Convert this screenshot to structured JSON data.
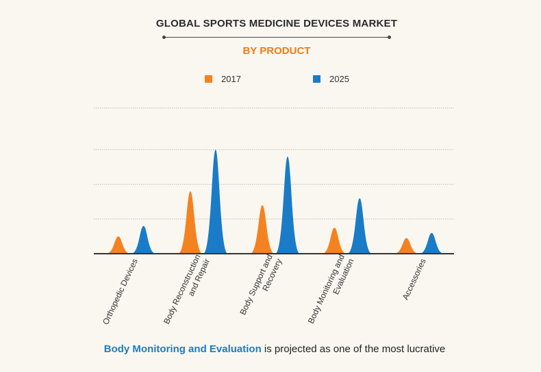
{
  "header": {
    "title": "GLOBAL SPORTS MEDICINE DEVICES MARKET",
    "subtitle": "BY PRODUCT"
  },
  "colors": {
    "series_2017": "#f58220",
    "series_2025": "#1a7cc6",
    "title": "#2b2b2b",
    "subtitle": "#f07c14",
    "gridline": "#bdbdbd",
    "axis": "#333333"
  },
  "chart_data": {
    "type": "area",
    "shape": "peak",
    "title": "GLOBAL SPORTS MEDICINE DEVICES MARKET",
    "subtitle": "BY PRODUCT",
    "categories": [
      "Orthopedic Devices",
      "Body Reconstruction and Repair",
      "Body Support and Recovery",
      "Body Monitoring and Evaluation",
      "Accessories"
    ],
    "category_labels": [
      [
        "Orthopedic Devices"
      ],
      [
        "Body Reconstruction",
        "and Repair"
      ],
      [
        "Body Support and",
        "Recovery"
      ],
      [
        "Body Monitoring and",
        "Evaluation"
      ],
      [
        "Accessories"
      ]
    ],
    "series": [
      {
        "name": "2017",
        "values": [
          0.5,
          1.8,
          1.4,
          0.75,
          0.45
        ]
      },
      {
        "name": "2025",
        "values": [
          0.8,
          3.0,
          2.8,
          1.6,
          0.6
        ]
      }
    ],
    "ylim": [
      0,
      4.2
    ],
    "gridlines": [
      1,
      2,
      3,
      4.2
    ],
    "grid": true,
    "legend_position": "top-center",
    "xlabel": "",
    "ylabel": ""
  },
  "footer": {
    "highlight": "Body Monitoring and Evaluation",
    "text": " is projected as one of the most lucrative"
  }
}
